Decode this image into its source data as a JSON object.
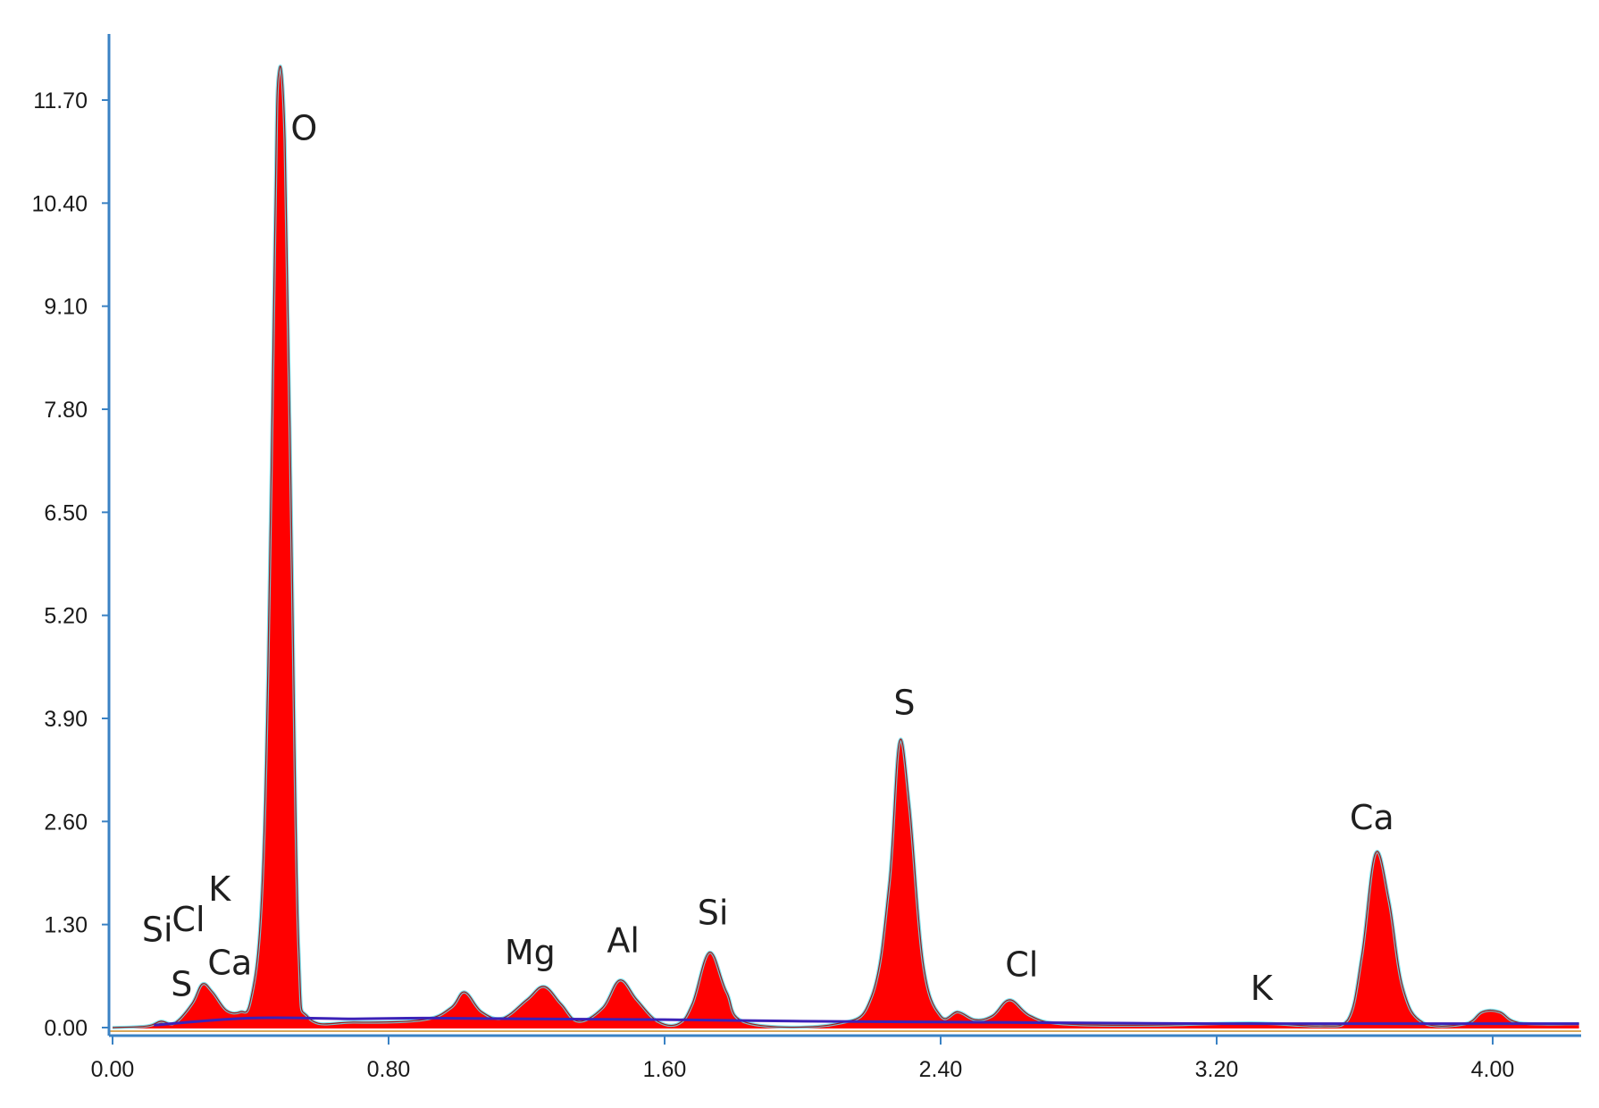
{
  "colors": {
    "spectrum_fill": "#ff0000",
    "spectrum_edge": "#9b1a1a",
    "envelope": "#66dfee",
    "background_line": "#3b22b8",
    "axis": "#3a82c4",
    "baseline": "#d9a85a",
    "label": "#1f1f1f"
  },
  "chart_data": {
    "type": "area",
    "title": "",
    "xlabel": "",
    "ylabel": "",
    "xlim": [
      0,
      4.25
    ],
    "ylim": [
      0,
      12.5
    ],
    "x_ticks": [
      0.0,
      0.8,
      1.6,
      2.4,
      3.2,
      4.0
    ],
    "x_tick_labels": [
      "0.00",
      "0.80",
      "1.60",
      "2.40",
      "3.20",
      "4.00"
    ],
    "y_ticks": [
      0.0,
      1.3,
      2.6,
      3.9,
      5.2,
      6.5,
      7.8,
      9.1,
      10.4,
      11.7
    ],
    "y_tick_labels": [
      "0.00",
      "1.30",
      "2.60",
      "3.90",
      "5.20",
      "6.50",
      "7.80",
      "9.10",
      "10.40",
      "11.70"
    ],
    "series": [
      {
        "values": [
          [
            0.0,
            0.0
          ],
          [
            0.1,
            0.02
          ],
          [
            0.14,
            0.08
          ],
          [
            0.18,
            0.06
          ],
          [
            0.23,
            0.3
          ],
          [
            0.26,
            0.55
          ],
          [
            0.29,
            0.45
          ],
          [
            0.33,
            0.22
          ],
          [
            0.37,
            0.2
          ],
          [
            0.4,
            0.35
          ],
          [
            0.43,
            1.5
          ],
          [
            0.45,
            4.5
          ],
          [
            0.47,
            10.0
          ],
          [
            0.48,
            12.0
          ],
          [
            0.5,
            11.2
          ],
          [
            0.52,
            6.0
          ],
          [
            0.54,
            1.0
          ],
          [
            0.57,
            0.12
          ],
          [
            0.7,
            0.07
          ],
          [
            0.9,
            0.1
          ],
          [
            0.98,
            0.25
          ],
          [
            1.02,
            0.45
          ],
          [
            1.07,
            0.2
          ],
          [
            1.13,
            0.12
          ],
          [
            1.2,
            0.35
          ],
          [
            1.25,
            0.52
          ],
          [
            1.3,
            0.3
          ],
          [
            1.35,
            0.08
          ],
          [
            1.42,
            0.25
          ],
          [
            1.47,
            0.6
          ],
          [
            1.52,
            0.35
          ],
          [
            1.58,
            0.08
          ],
          [
            1.64,
            0.05
          ],
          [
            1.68,
            0.3
          ],
          [
            1.73,
            0.95
          ],
          [
            1.78,
            0.45
          ],
          [
            1.84,
            0.06
          ],
          [
            2.1,
            0.05
          ],
          [
            2.2,
            0.4
          ],
          [
            2.25,
            1.8
          ],
          [
            2.28,
            3.6
          ],
          [
            2.31,
            2.8
          ],
          [
            2.35,
            0.8
          ],
          [
            2.4,
            0.15
          ],
          [
            2.45,
            0.2
          ],
          [
            2.5,
            0.1
          ],
          [
            2.55,
            0.15
          ],
          [
            2.6,
            0.35
          ],
          [
            2.66,
            0.15
          ],
          [
            2.75,
            0.05
          ],
          [
            3.0,
            0.03
          ],
          [
            3.3,
            0.06
          ],
          [
            3.5,
            0.02
          ],
          [
            3.58,
            0.1
          ],
          [
            3.62,
            0.9
          ],
          [
            3.66,
            2.2
          ],
          [
            3.7,
            1.6
          ],
          [
            3.74,
            0.5
          ],
          [
            3.8,
            0.06
          ],
          [
            3.92,
            0.05
          ],
          [
            3.97,
            0.2
          ],
          [
            4.02,
            0.2
          ],
          [
            4.08,
            0.06
          ],
          [
            4.25,
            0.05
          ]
        ]
      }
    ],
    "annotations": [
      {
        "text": "O",
        "x": 0.555,
        "y": 11.2
      },
      {
        "text": "S",
        "x": 2.295,
        "y": 3.95
      },
      {
        "text": "Ca",
        "x": 3.65,
        "y": 2.5
      },
      {
        "text": "Si",
        "x": 1.74,
        "y": 1.3
      },
      {
        "text": "Al",
        "x": 1.48,
        "y": 0.95
      },
      {
        "text": "Mg",
        "x": 1.21,
        "y": 0.8
      },
      {
        "text": "Cl",
        "x": 2.635,
        "y": 0.65
      },
      {
        "text": "K",
        "x": 3.33,
        "y": 0.35
      },
      {
        "text": "Si",
        "x": 0.13,
        "y": 1.09
      },
      {
        "text": "Cl",
        "x": 0.22,
        "y": 1.22
      },
      {
        "text": "K",
        "x": 0.31,
        "y": 1.6
      },
      {
        "text": "Ca",
        "x": 0.34,
        "y": 0.67
      },
      {
        "text": "S",
        "x": 0.2,
        "y": 0.4
      }
    ]
  }
}
